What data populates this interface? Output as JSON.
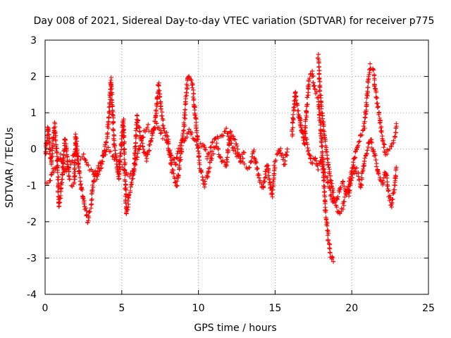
{
  "chart_data": {
    "type": "scatter",
    "title": "Day 008 of 2021, Sidereal Day-to-day VTEC variation (SDTVAR) for receiver p775",
    "xlabel": "GPS time / hours",
    "ylabel": "SDTVAR / TECUs",
    "xlim": [
      0,
      25
    ],
    "ylim": [
      -4,
      3
    ],
    "xticks": [
      "0",
      "5",
      "10",
      "15",
      "20",
      "25"
    ],
    "yticks": [
      "3",
      "2",
      "1",
      "0",
      "-1",
      "-2",
      "-3",
      "-4"
    ],
    "grid": true,
    "marker": "plus",
    "series": [
      {
        "name": "SDTVAR",
        "color": "#ff0000",
        "tracks": [
          [
            [
              0.0,
              -0.2
            ],
            [
              0.2,
              0.6
            ],
            [
              0.4,
              -0.4
            ],
            [
              0.6,
              0.7
            ],
            [
              0.8,
              -0.3
            ],
            [
              0.9,
              -1.6
            ],
            [
              1.1,
              -0.8
            ],
            [
              1.3,
              0.3
            ],
            [
              1.6,
              -0.9
            ],
            [
              1.9,
              -1.0
            ],
            [
              2.0,
              0.4
            ],
            [
              2.2,
              -0.6
            ],
            [
              2.5,
              -1.4
            ],
            [
              2.8,
              -2.0
            ],
            [
              3.0,
              -1.5
            ],
            [
              3.2,
              -0.7
            ],
            [
              3.5,
              -0.5
            ],
            [
              3.8,
              -0.2
            ],
            [
              4.1,
              0.5
            ],
            [
              4.3,
              1.9
            ],
            [
              4.5,
              0.2
            ],
            [
              4.8,
              -0.8
            ],
            [
              5.1,
              0.8
            ],
            [
              5.3,
              -1.8
            ],
            [
              5.5,
              -1.2
            ],
            [
              5.8,
              -0.6
            ],
            [
              6.0,
              0.9
            ],
            [
              6.3,
              0.2
            ],
            [
              6.6,
              -0.3
            ],
            [
              6.9,
              0.2
            ],
            [
              7.2,
              0.8
            ],
            [
              7.4,
              1.8
            ],
            [
              7.7,
              0.6
            ],
            [
              8.0,
              0.3
            ],
            [
              8.3,
              -0.6
            ],
            [
              8.6,
              -1.0
            ],
            [
              8.9,
              0.0
            ],
            [
              9.1,
              0.8
            ],
            [
              9.3,
              2.0
            ],
            [
              9.6,
              1.8
            ],
            [
              9.9,
              0.4
            ],
            [
              10.1,
              -0.5
            ],
            [
              10.4,
              -1.0
            ],
            [
              10.6,
              -0.7
            ],
            [
              10.9,
              -0.1
            ],
            [
              11.2,
              0.1
            ],
            [
              11.5,
              -0.3
            ],
            [
              11.8,
              -0.5
            ],
            [
              12.1,
              0.5
            ],
            [
              12.4,
              0.2
            ],
            [
              12.7,
              -0.2
            ],
            [
              13.0,
              -0.4
            ],
            [
              13.3,
              -0.5
            ],
            [
              13.6,
              -0.1
            ],
            [
              13.9,
              -0.7
            ],
            [
              14.2,
              -1.1
            ],
            [
              14.5,
              -0.4
            ],
            [
              14.8,
              -1.3
            ],
            [
              15.0,
              -0.3
            ],
            [
              15.3,
              0.0
            ],
            [
              15.6,
              -0.4
            ],
            [
              15.8,
              0.0
            ]
          ],
          [
            [
              0.0,
              -1.0
            ],
            [
              0.3,
              -0.9
            ],
            [
              0.5,
              -0.6
            ],
            [
              0.8,
              -0.4
            ],
            [
              1.0,
              -0.2
            ],
            [
              1.3,
              -0.6
            ],
            [
              1.6,
              -0.4
            ],
            [
              1.9,
              -0.1
            ],
            [
              2.2,
              -0.3
            ],
            [
              2.5,
              -0.2
            ],
            [
              2.8,
              -0.5
            ],
            [
              3.1,
              -0.6
            ],
            [
              3.4,
              -0.8
            ],
            [
              3.7,
              -0.4
            ],
            [
              4.0,
              0.0
            ],
            [
              4.3,
              -0.1
            ],
            [
              4.6,
              -0.3
            ],
            [
              4.9,
              -0.5
            ],
            [
              5.2,
              -0.6
            ],
            [
              5.5,
              -0.7
            ],
            [
              5.8,
              -0.5
            ],
            [
              6.1,
              0.0
            ],
            [
              6.4,
              0.4
            ],
            [
              6.7,
              0.6
            ],
            [
              7.0,
              0.5
            ],
            [
              7.3,
              0.7
            ],
            [
              7.6,
              0.4
            ],
            [
              7.9,
              0.3
            ],
            [
              8.2,
              -0.2
            ],
            [
              8.5,
              -0.4
            ],
            [
              8.8,
              0.1
            ],
            [
              9.1,
              0.3
            ],
            [
              9.4,
              0.5
            ],
            [
              9.7,
              0.3
            ],
            [
              10.0,
              0.2
            ],
            [
              10.3,
              0.1
            ],
            [
              10.6,
              -0.2
            ],
            [
              10.9,
              0.1
            ],
            [
              11.2,
              0.4
            ],
            [
              11.5,
              0.3
            ],
            [
              11.8,
              0.5
            ],
            [
              12.1,
              0.2
            ],
            [
              12.4,
              -0.1
            ],
            [
              12.7,
              -0.3
            ],
            [
              13.0,
              -0.1
            ]
          ],
          [
            [
              16.1,
              0.4
            ],
            [
              16.3,
              1.6
            ],
            [
              16.5,
              1.0
            ],
            [
              16.7,
              0.6
            ],
            [
              16.9,
              0.1
            ],
            [
              17.0,
              0.7
            ],
            [
              17.2,
              1.9
            ],
            [
              17.4,
              2.1
            ],
            [
              17.6,
              1.6
            ],
            [
              17.8,
              1.4
            ],
            [
              18.0,
              0.4
            ],
            [
              18.1,
              -0.3
            ],
            [
              18.2,
              -1.0
            ],
            [
              18.3,
              -1.8
            ],
            [
              18.4,
              -2.2
            ],
            [
              18.5,
              -2.6
            ],
            [
              18.6,
              -2.9
            ],
            [
              18.7,
              -3.0
            ],
            [
              18.8,
              -3.1
            ]
          ],
          [
            [
              17.8,
              2.6
            ],
            [
              17.9,
              1.8
            ],
            [
              18.0,
              1.2
            ],
            [
              18.2,
              0.5
            ],
            [
              18.4,
              -0.2
            ],
            [
              18.6,
              -0.8
            ],
            [
              18.8,
              -1.3
            ],
            [
              19.0,
              -1.6
            ],
            [
              19.2,
              -1.8
            ],
            [
              19.4,
              -1.6
            ],
            [
              19.6,
              -1.3
            ],
            [
              19.8,
              -1.0
            ],
            [
              20.0,
              -0.6
            ],
            [
              20.2,
              -0.2
            ],
            [
              20.4,
              0.1
            ],
            [
              20.6,
              0.4
            ],
            [
              20.8,
              0.6
            ],
            [
              21.0,
              1.5
            ],
            [
              21.2,
              2.3
            ],
            [
              21.4,
              2.2
            ],
            [
              21.6,
              1.4
            ],
            [
              21.8,
              0.9
            ],
            [
              22.0,
              0.3
            ],
            [
              22.2,
              -0.1
            ],
            [
              22.4,
              0.0
            ],
            [
              22.6,
              0.1
            ],
            [
              22.8,
              0.3
            ],
            [
              22.9,
              0.7
            ]
          ],
          [
            [
              16.6,
              0.8
            ],
            [
              16.8,
              0.4
            ],
            [
              17.0,
              0.3
            ],
            [
              17.2,
              -0.1
            ],
            [
              17.4,
              -0.4
            ],
            [
              17.6,
              -0.2
            ],
            [
              17.8,
              -0.5
            ],
            [
              18.0,
              -0.3
            ],
            [
              18.2,
              -0.6
            ],
            [
              18.4,
              -0.8
            ],
            [
              18.6,
              -1.2
            ],
            [
              18.8,
              -1.5
            ],
            [
              19.0,
              -1.4
            ],
            [
              19.2,
              -1.1
            ],
            [
              19.4,
              -0.9
            ],
            [
              19.6,
              -1.1
            ],
            [
              19.8,
              -1.3
            ],
            [
              20.0,
              -0.8
            ],
            [
              20.2,
              -0.5
            ],
            [
              20.4,
              -0.7
            ],
            [
              20.6,
              -1.0
            ],
            [
              20.8,
              -0.4
            ],
            [
              21.0,
              0.0
            ],
            [
              21.2,
              0.3
            ],
            [
              21.4,
              0.0
            ],
            [
              21.6,
              -0.4
            ],
            [
              21.8,
              -0.8
            ],
            [
              22.0,
              -1.0
            ],
            [
              22.2,
              -0.6
            ],
            [
              22.4,
              -1.2
            ],
            [
              22.6,
              -1.6
            ],
            [
              22.8,
              -1.0
            ],
            [
              22.9,
              -0.5
            ]
          ]
        ]
      }
    ]
  }
}
